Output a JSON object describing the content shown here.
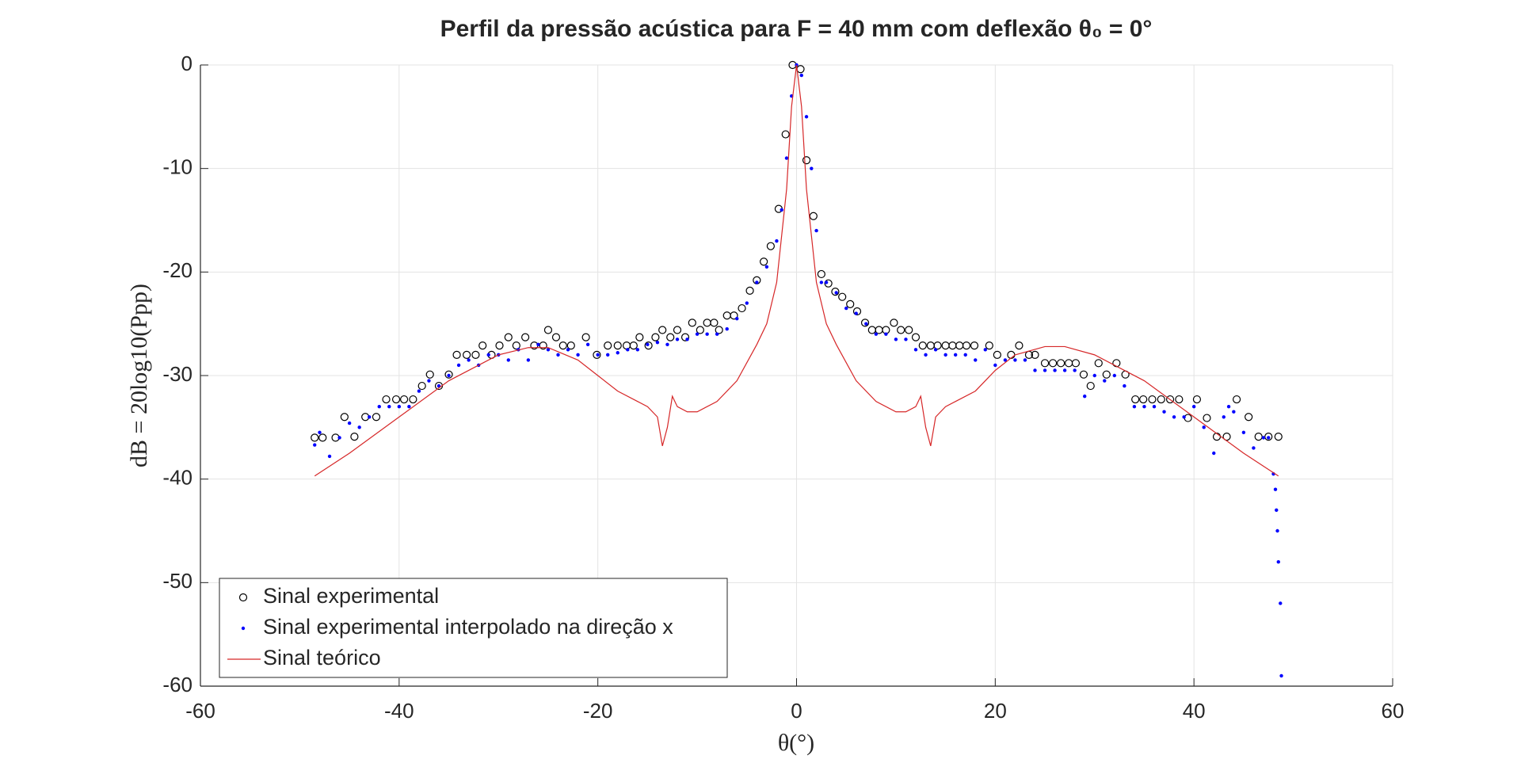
{
  "chart_data": {
    "type": "line",
    "title": "Perfil da pressão acústica para F = 40 mm com deflexão θ₀ = 0°",
    "xlabel": "θ(°)",
    "ylabel": "dB = 20log10(Ppp)",
    "xlim": [
      -60,
      60
    ],
    "ylim": [
      -60,
      0
    ],
    "xticks": [
      -60,
      -40,
      -20,
      0,
      20,
      40,
      60
    ],
    "yticks": [
      -60,
      -50,
      -40,
      -30,
      -20,
      -10,
      0
    ],
    "grid": true,
    "legend": "lower left",
    "series": [
      {
        "name": "Sinal experimental",
        "color": "#000000",
        "style": "circle",
        "x": [
          -48.5,
          -47.7,
          -46.4,
          -45.5,
          -44.5,
          -43.4,
          -42.3,
          -41.3,
          -40.3,
          -39.5,
          -38.6,
          -37.7,
          -36.9,
          -36,
          -35,
          -34.2,
          -33.2,
          -32.3,
          -31.6,
          -30.7,
          -29.9,
          -29,
          -28.2,
          -27.3,
          -26.4,
          -25.5,
          -25,
          -24.2,
          -23.5,
          -22.7,
          -21.2,
          -20.1,
          -19,
          -18,
          -17.1,
          -16.4,
          -15.8,
          -14.9,
          -14.2,
          -13.5,
          -12.7,
          -12,
          -11.2,
          -10.5,
          -9.7,
          -9,
          -8.3,
          -7.8,
          -7,
          -6.3,
          -5.5,
          -4.7,
          -4,
          -3.3,
          -2.6,
          -1.8,
          -1.1,
          -0.4,
          0.4,
          1,
          1.7,
          2.5,
          3.2,
          3.9,
          4.6,
          5.4,
          6.1,
          6.9,
          7.6,
          8.3,
          9,
          9.8,
          10.5,
          11.3,
          12,
          12.7,
          13.5,
          14.2,
          15,
          15.7,
          16.4,
          17.1,
          17.9,
          19.4,
          20.2,
          21.6,
          22.4,
          23.4,
          24,
          25,
          25.8,
          26.6,
          27.4,
          28.1,
          28.9,
          29.6,
          30.4,
          31.2,
          32.2,
          33.1,
          34.1,
          34.9,
          35.8,
          36.7,
          37.6,
          38.5,
          39.4,
          40.3,
          41.3,
          42.3,
          43.3,
          44.3,
          45.5,
          46.5,
          47.5,
          48.5
        ],
        "values": [
          -36,
          -36,
          -36,
          -34,
          -35.9,
          -34,
          -34,
          -32.3,
          -32.3,
          -32.3,
          -32.3,
          -31,
          -29.9,
          -31,
          -29.9,
          -28,
          -28,
          -28,
          -27.1,
          -28,
          -27.1,
          -26.3,
          -27.1,
          -26.3,
          -27.1,
          -27.1,
          -25.6,
          -26.3,
          -27.1,
          -27.1,
          -26.3,
          -28,
          -27.1,
          -27.1,
          -27.1,
          -27.1,
          -26.3,
          -27.1,
          -26.3,
          -25.6,
          -26.3,
          -25.6,
          -26.3,
          -24.9,
          -25.6,
          -24.9,
          -24.9,
          -25.6,
          -24.2,
          -24.2,
          -23.5,
          -21.8,
          -20.8,
          -19,
          -17.5,
          -13.9,
          -6.7,
          0,
          -0.4,
          -9.2,
          -14.6,
          -20.2,
          -21.1,
          -21.9,
          -22.4,
          -23.1,
          -23.8,
          -24.9,
          -25.6,
          -25.6,
          -25.6,
          -24.9,
          -25.6,
          -25.6,
          -26.3,
          -27.1,
          -27.1,
          -27.1,
          -27.1,
          -27.1,
          -27.1,
          -27.1,
          -27.1,
          -27.1,
          -28,
          -28,
          -27.1,
          -28,
          -28,
          -28.8,
          -28.8,
          -28.8,
          -28.8,
          -28.8,
          -29.9,
          -31,
          -28.8,
          -29.9,
          -28.8,
          -29.9,
          -32.3,
          -32.3,
          -32.3,
          -32.3,
          -32.3,
          -32.3,
          -34.1,
          -32.3,
          -34.1,
          -35.9,
          -35.9,
          -32.3,
          -34,
          -35.9,
          -35.9,
          -35.9
        ]
      },
      {
        "name": "Sinal experimental interpolado na direção x",
        "color": "#0000ff",
        "style": "dot",
        "x": [
          -48.5,
          -48,
          -47,
          -46,
          -45,
          -44,
          -43,
          -42,
          -41,
          -40,
          -39,
          -38,
          -37,
          -36,
          -35,
          -34,
          -33,
          -32,
          -31,
          -30,
          -29,
          -28,
          -27,
          -26,
          -25,
          -24,
          -23,
          -22,
          -21,
          -20,
          -19,
          -18,
          -17,
          -16,
          -15,
          -14,
          -13,
          -12,
          -11,
          -10,
          -9,
          -8,
          -7,
          -6,
          -5,
          -4,
          -3,
          -2,
          -1.5,
          -1,
          -0.5,
          0,
          0.5,
          1,
          1.5,
          2,
          2.5,
          3,
          4,
          5,
          6,
          7,
          8,
          9,
          10,
          11,
          12,
          13,
          14,
          15,
          16,
          17,
          18,
          19,
          20,
          21,
          22,
          23,
          24,
          25,
          26,
          27,
          28,
          29,
          30,
          31,
          32,
          33,
          34,
          35,
          36,
          37,
          38,
          39,
          40,
          41,
          42,
          43,
          43.5,
          44,
          45,
          46,
          47,
          47.5,
          48,
          48.2,
          48.3,
          48.4,
          48.5,
          48.7,
          48.8
        ],
        "values": [
          -36.7,
          -35.5,
          -37.8,
          -36,
          -34.6,
          -35,
          -34,
          -33,
          -33,
          -33,
          -33,
          -31.5,
          -30.5,
          -31,
          -30,
          -29,
          -28.5,
          -29,
          -28,
          -28,
          -28.5,
          -27.5,
          -28.5,
          -27,
          -27.5,
          -28,
          -27.5,
          -28,
          -27,
          -28,
          -28,
          -27.8,
          -27.5,
          -27.5,
          -27,
          -26.8,
          -27,
          -26.5,
          -26.5,
          -26,
          -26,
          -26,
          -25.5,
          -24.5,
          -23,
          -21,
          -19.5,
          -17,
          -14,
          -9,
          -3,
          0,
          -1,
          -5,
          -10,
          -16,
          -21,
          -21,
          -22,
          -23.5,
          -24,
          -25,
          -26,
          -26,
          -26.5,
          -26.5,
          -27.5,
          -28,
          -27.5,
          -28,
          -28,
          -28,
          -28.5,
          -27.5,
          -29,
          -28.5,
          -28.5,
          -28.5,
          -29.5,
          -29.5,
          -29.5,
          -29.5,
          -29.5,
          -32,
          -30,
          -30.5,
          -30,
          -31,
          -33,
          -33,
          -33,
          -33.5,
          -34,
          -34,
          -33,
          -35,
          -37.5,
          -34,
          -33,
          -33.5,
          -35.5,
          -37,
          -36,
          -36,
          -39.5,
          -41,
          -43,
          -45,
          -48,
          -52,
          -59
        ]
      },
      {
        "name": "Sinal teórico",
        "color": "#d62728",
        "style": "line",
        "x": [
          -48.5,
          -45,
          -40,
          -35,
          -30,
          -27,
          -25,
          -22,
          -20,
          -18,
          -16,
          -15,
          -14,
          -13.5,
          -13,
          -12.5,
          -12,
          -11,
          -10,
          -8,
          -6,
          -4,
          -3,
          -2,
          -1,
          -0.5,
          0,
          0.5,
          1,
          2,
          3,
          4,
          6,
          8,
          10,
          11,
          12,
          12.5,
          13,
          13.5,
          14,
          15,
          16,
          18,
          20,
          22,
          25,
          27,
          30,
          35,
          40,
          45,
          48.5
        ],
        "values": [
          -39.7,
          -37.5,
          -34,
          -30.5,
          -28,
          -27.3,
          -27.3,
          -28.5,
          -30,
          -31.5,
          -32.5,
          -33,
          -34,
          -36.8,
          -35,
          -32,
          -33,
          -33.5,
          -33.5,
          -32.5,
          -30.5,
          -27,
          -25,
          -21,
          -12,
          -4,
          0,
          -4,
          -12,
          -21,
          -25,
          -27,
          -30.5,
          -32.5,
          -33.5,
          -33.5,
          -33,
          -32,
          -35,
          -36.8,
          -34,
          -33,
          -32.5,
          -31.5,
          -29.5,
          -28,
          -27.2,
          -27.2,
          -28,
          -30.5,
          -34,
          -37.5,
          -39.7
        ]
      }
    ]
  }
}
